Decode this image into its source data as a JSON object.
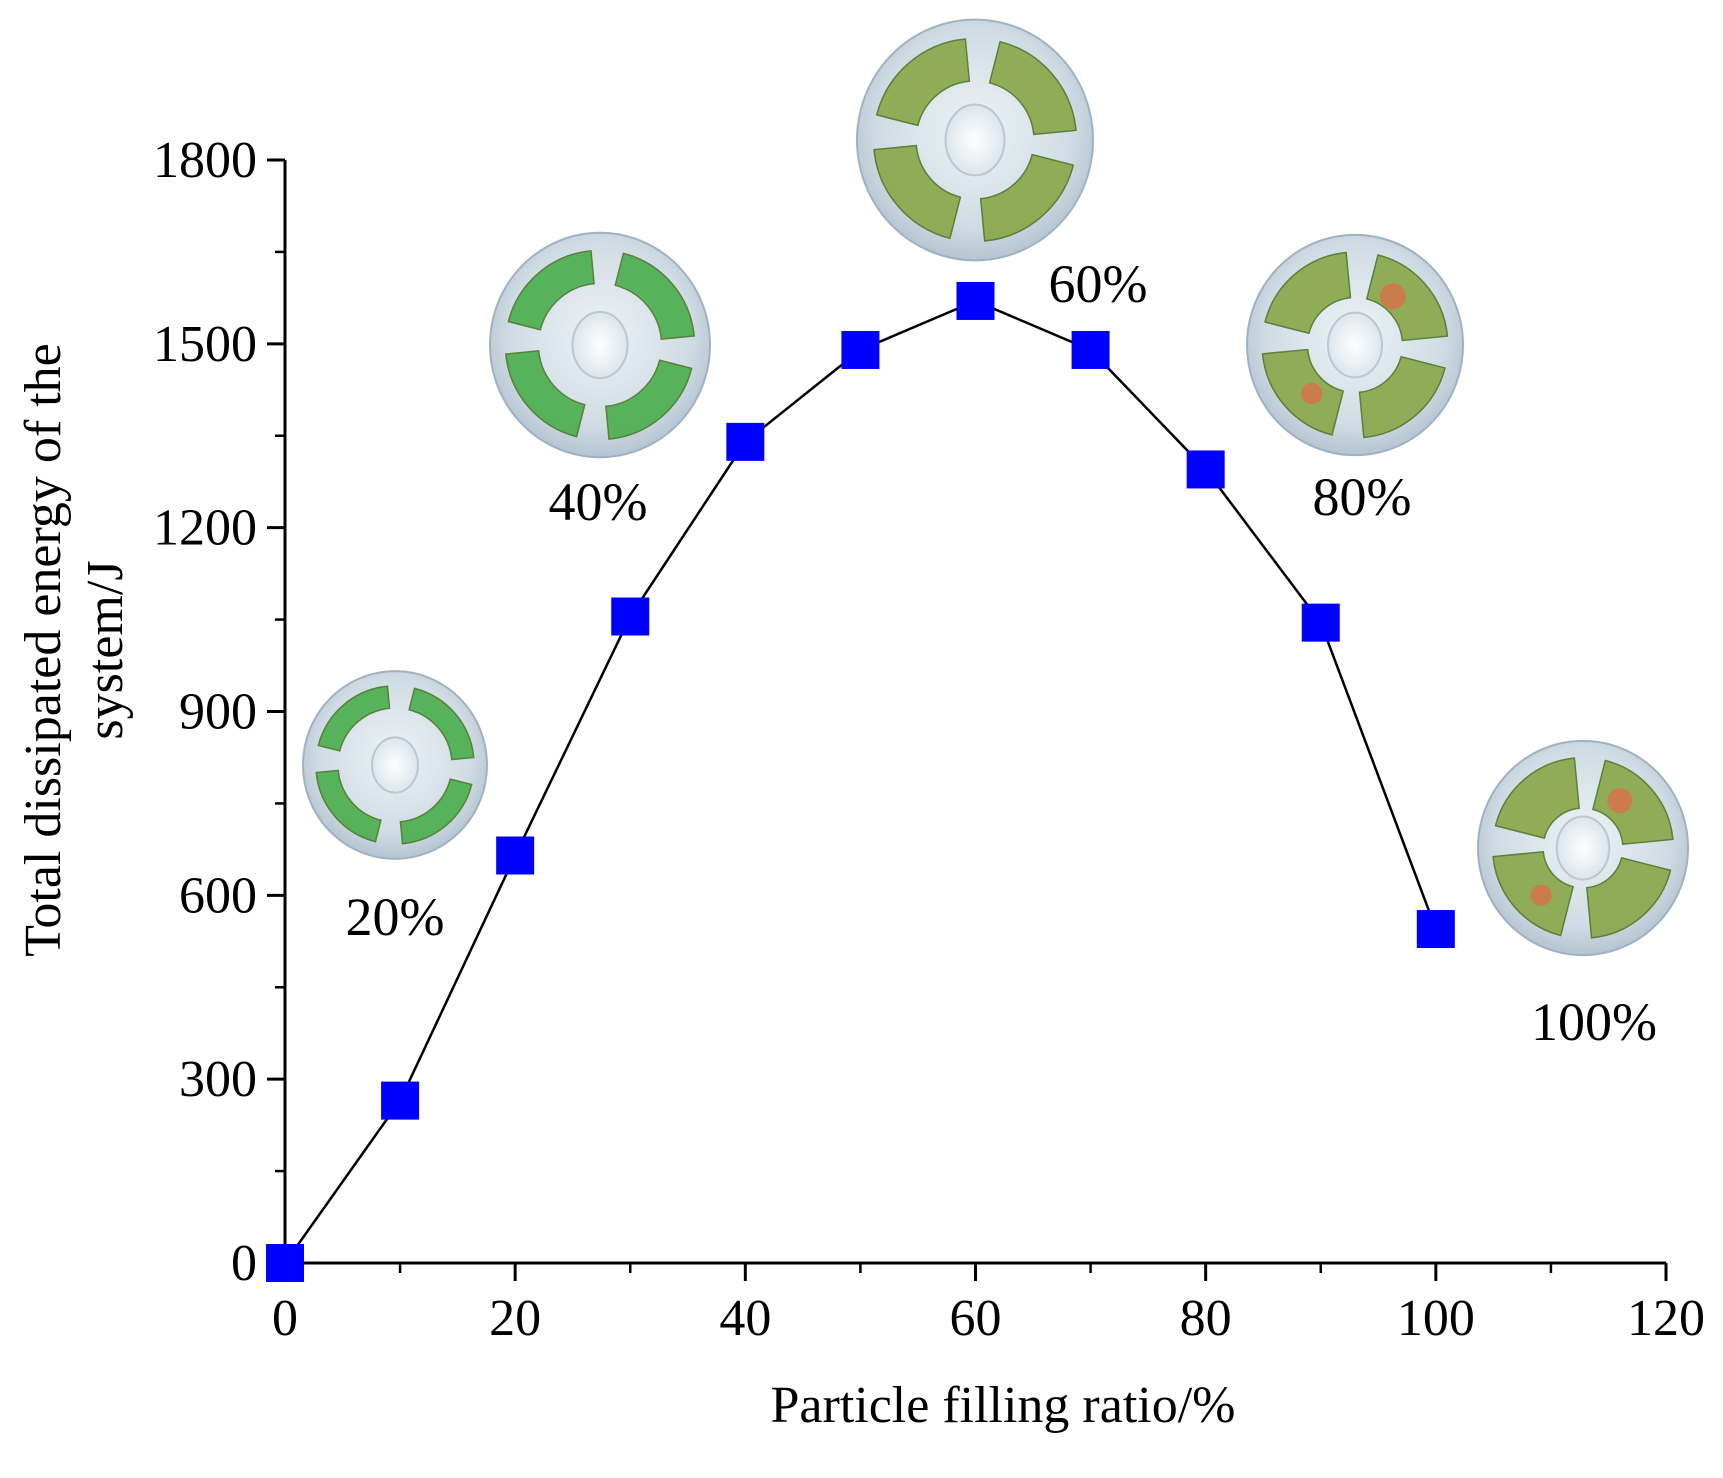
{
  "chart_data": {
    "type": "line",
    "title": "",
    "xlabel": "Particle filling ratio/%",
    "ylabel_lines": [
      "Total dissipated energy of the",
      "system/J"
    ],
    "x": [
      0,
      10,
      20,
      30,
      40,
      50,
      60,
      70,
      80,
      90,
      100
    ],
    "y": [
      0,
      265,
      665,
      1055,
      1340,
      1490,
      1570,
      1490,
      1295,
      1045,
      545
    ],
    "xlim": [
      0,
      120
    ],
    "ylim": [
      0,
      1800
    ],
    "xticks": [
      0,
      20,
      40,
      60,
      80,
      100,
      120
    ],
    "yticks": [
      0,
      300,
      600,
      900,
      1200,
      1500,
      1800
    ],
    "marker": "square",
    "colors": {
      "line": "#000000",
      "marker": "#0000ff",
      "shell": "#c9d6df",
      "particles": "#4caf50"
    },
    "grid": false,
    "annotations": [
      {
        "label": "20%",
        "fill": 20
      },
      {
        "label": "40%",
        "fill": 40
      },
      {
        "label": "60%",
        "fill": 60
      },
      {
        "label": "80%",
        "fill": 80
      },
      {
        "label": "100%",
        "fill": 100
      }
    ]
  }
}
